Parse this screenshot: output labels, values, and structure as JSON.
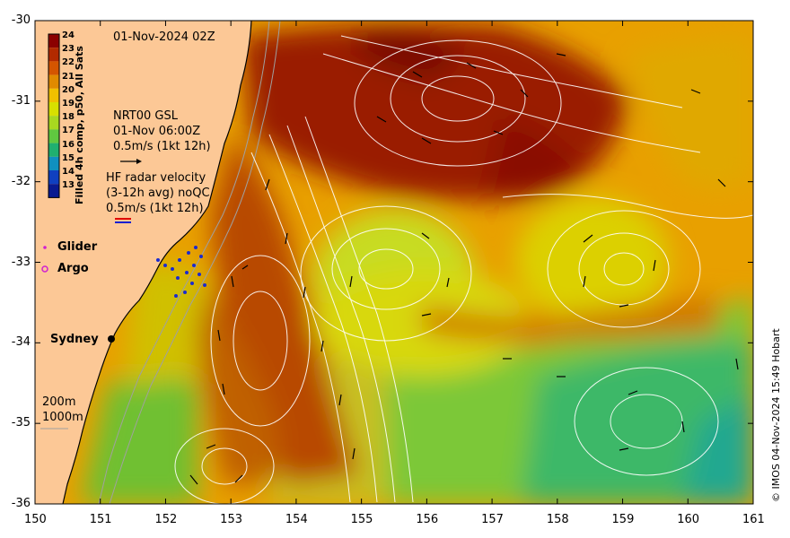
{
  "map": {
    "timestamp": "01-Nov-2024 02Z",
    "x_ticks": [
      "150",
      "151",
      "152",
      "153",
      "154",
      "155",
      "156",
      "157",
      "158",
      "159",
      "160",
      "161"
    ],
    "y_ticks": [
      "-30",
      "-31",
      "-32",
      "-33",
      "-34",
      "-35",
      "-36"
    ],
    "xlim": [
      150,
      161
    ],
    "ylim": [
      -36,
      -30
    ],
    "grid": false
  },
  "colorbar": {
    "title": "Filled 4h comp, p50, All Sats",
    "ticks": [
      "24",
      "23",
      "22",
      "21",
      "20",
      "19",
      "18",
      "17",
      "16",
      "15",
      "14",
      "13"
    ],
    "colors": [
      "#8b0000",
      "#b22a00",
      "#d45500",
      "#e08a00",
      "#f0c000",
      "#d8e000",
      "#a8d820",
      "#60c840",
      "#20b070",
      "#1090c0",
      "#1040c0",
      "#0a1a90"
    ]
  },
  "annotations": {
    "gsl_line1": "NRT00 GSL",
    "gsl_line2": "01-Nov 06:00Z",
    "gsl_line3": "0.5m/s (1kt 12h)",
    "hf_line1": "HF radar velocity",
    "hf_line2": "(3-12h avg) noQC",
    "hf_line3": "0.5m/s (1kt 12h)",
    "glider": "Glider",
    "argo": "Argo",
    "sydney": "Sydney",
    "depth_200": "200m",
    "depth_1000": "1000m"
  },
  "copyright": "© IMOS 04-Nov-2024 15:49 Hobart"
}
